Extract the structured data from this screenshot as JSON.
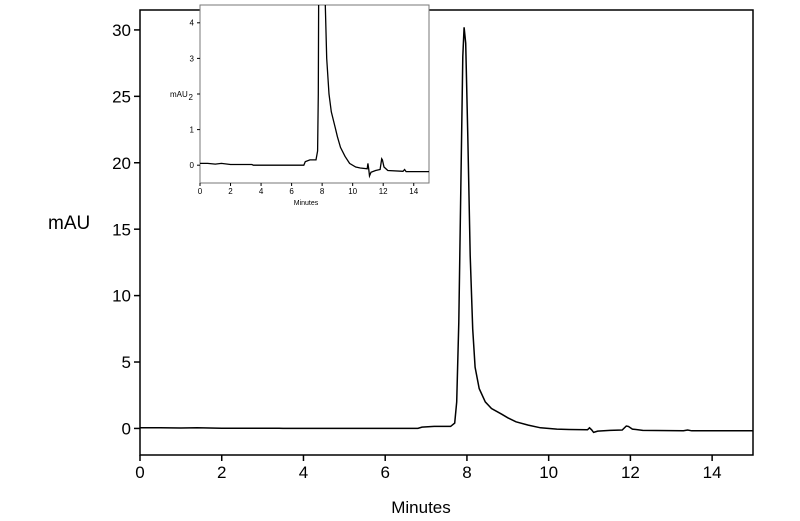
{
  "chart_data": [
    {
      "type": "line",
      "xlabel": "Minutes",
      "ylabel": "mAU",
      "xlim": [
        0,
        15
      ],
      "ylim": [
        -2,
        31.5
      ],
      "xticks": [
        0,
        2,
        4,
        6,
        8,
        10,
        12,
        14
      ],
      "yticks": [
        0,
        5,
        10,
        15,
        20,
        25,
        30
      ],
      "grid": false,
      "series": [
        {
          "points": [
            [
              0,
              0.05
            ],
            [
              0.5,
              0.05
            ],
            [
              1.0,
              0.03
            ],
            [
              1.4,
              0.05
            ],
            [
              2,
              0.02
            ],
            [
              3.4,
              0.02
            ],
            [
              3.5,
              0
            ],
            [
              6.8,
              0
            ],
            [
              6.9,
              0.1
            ],
            [
              7.2,
              0.15
            ],
            [
              7.6,
              0.15
            ],
            [
              7.7,
              0.4
            ],
            [
              7.75,
              2
            ],
            [
              7.8,
              8
            ],
            [
              7.85,
              18
            ],
            [
              7.9,
              28
            ],
            [
              7.93,
              30.2
            ],
            [
              7.97,
              29
            ],
            [
              8.02,
              22
            ],
            [
              8.08,
              13
            ],
            [
              8.14,
              7.5
            ],
            [
              8.2,
              4.6
            ],
            [
              8.3,
              3.0
            ],
            [
              8.45,
              2.0
            ],
            [
              8.6,
              1.5
            ],
            [
              8.85,
              1.07
            ],
            [
              9.0,
              0.8
            ],
            [
              9.2,
              0.5
            ],
            [
              9.5,
              0.25
            ],
            [
              9.8,
              0.05
            ],
            [
              10.2,
              -0.05
            ],
            [
              10.5,
              -0.08
            ],
            [
              10.95,
              -0.1
            ],
            [
              11.0,
              0.05
            ],
            [
              11.05,
              -0.1
            ],
            [
              11.1,
              -0.3
            ],
            [
              11.2,
              -0.2
            ],
            [
              11.5,
              -0.15
            ],
            [
              11.8,
              -0.12
            ],
            [
              11.9,
              0.18
            ],
            [
              11.95,
              0.15
            ],
            [
              12.05,
              -0.05
            ],
            [
              12.3,
              -0.15
            ],
            [
              13.3,
              -0.17
            ],
            [
              13.4,
              -0.12
            ],
            [
              13.5,
              -0.18
            ],
            [
              15,
              -0.18
            ]
          ]
        }
      ]
    },
    {
      "type": "line",
      "role": "inset",
      "xlabel": "Minutes",
      "ylabel": "mAU",
      "xlim": [
        0,
        15
      ],
      "ylim": [
        -0.5,
        4.5
      ],
      "xticks": [
        0,
        2,
        4,
        6,
        8,
        10,
        12,
        14
      ],
      "yticks": [
        0,
        1,
        2,
        3,
        4
      ],
      "grid": false
    }
  ]
}
